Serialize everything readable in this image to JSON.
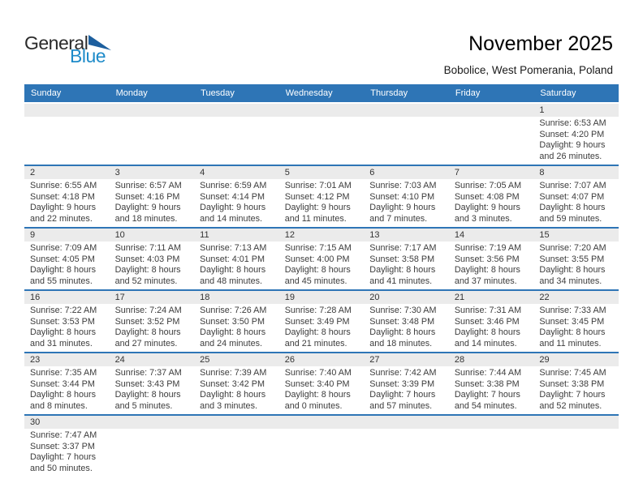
{
  "logo": {
    "general": "General",
    "blue": "Blue"
  },
  "header": {
    "title": "November 2025",
    "subtitle": "Bobolice, West Pomerania, Poland"
  },
  "colors": {
    "header_bg": "#2e75b6",
    "separator": "#2e75b6",
    "day_band_bg": "#ebebeb",
    "header_text": "#ffffff",
    "logo_general": "#2b2b2b",
    "logo_blue": "#1e8bc9",
    "logo_triangle": "#1d5f9e"
  },
  "calendar": {
    "day_headers": [
      "Sunday",
      "Monday",
      "Tuesday",
      "Wednesday",
      "Thursday",
      "Friday",
      "Saturday"
    ],
    "weeks": [
      {
        "cells": [
          null,
          null,
          null,
          null,
          null,
          null,
          {
            "day": "1",
            "lines": [
              "Sunrise: 6:53 AM",
              "Sunset: 4:20 PM",
              "Daylight: 9 hours",
              "and 26 minutes."
            ]
          }
        ]
      },
      {
        "cells": [
          {
            "day": "2",
            "lines": [
              "Sunrise: 6:55 AM",
              "Sunset: 4:18 PM",
              "Daylight: 9 hours",
              "and 22 minutes."
            ]
          },
          {
            "day": "3",
            "lines": [
              "Sunrise: 6:57 AM",
              "Sunset: 4:16 PM",
              "Daylight: 9 hours",
              "and 18 minutes."
            ]
          },
          {
            "day": "4",
            "lines": [
              "Sunrise: 6:59 AM",
              "Sunset: 4:14 PM",
              "Daylight: 9 hours",
              "and 14 minutes."
            ]
          },
          {
            "day": "5",
            "lines": [
              "Sunrise: 7:01 AM",
              "Sunset: 4:12 PM",
              "Daylight: 9 hours",
              "and 11 minutes."
            ]
          },
          {
            "day": "6",
            "lines": [
              "Sunrise: 7:03 AM",
              "Sunset: 4:10 PM",
              "Daylight: 9 hours",
              "and 7 minutes."
            ]
          },
          {
            "day": "7",
            "lines": [
              "Sunrise: 7:05 AM",
              "Sunset: 4:08 PM",
              "Daylight: 9 hours",
              "and 3 minutes."
            ]
          },
          {
            "day": "8",
            "lines": [
              "Sunrise: 7:07 AM",
              "Sunset: 4:07 PM",
              "Daylight: 8 hours",
              "and 59 minutes."
            ]
          }
        ]
      },
      {
        "cells": [
          {
            "day": "9",
            "lines": [
              "Sunrise: 7:09 AM",
              "Sunset: 4:05 PM",
              "Daylight: 8 hours",
              "and 55 minutes."
            ]
          },
          {
            "day": "10",
            "lines": [
              "Sunrise: 7:11 AM",
              "Sunset: 4:03 PM",
              "Daylight: 8 hours",
              "and 52 minutes."
            ]
          },
          {
            "day": "11",
            "lines": [
              "Sunrise: 7:13 AM",
              "Sunset: 4:01 PM",
              "Daylight: 8 hours",
              "and 48 minutes."
            ]
          },
          {
            "day": "12",
            "lines": [
              "Sunrise: 7:15 AM",
              "Sunset: 4:00 PM",
              "Daylight: 8 hours",
              "and 45 minutes."
            ]
          },
          {
            "day": "13",
            "lines": [
              "Sunrise: 7:17 AM",
              "Sunset: 3:58 PM",
              "Daylight: 8 hours",
              "and 41 minutes."
            ]
          },
          {
            "day": "14",
            "lines": [
              "Sunrise: 7:19 AM",
              "Sunset: 3:56 PM",
              "Daylight: 8 hours",
              "and 37 minutes."
            ]
          },
          {
            "day": "15",
            "lines": [
              "Sunrise: 7:20 AM",
              "Sunset: 3:55 PM",
              "Daylight: 8 hours",
              "and 34 minutes."
            ]
          }
        ]
      },
      {
        "cells": [
          {
            "day": "16",
            "lines": [
              "Sunrise: 7:22 AM",
              "Sunset: 3:53 PM",
              "Daylight: 8 hours",
              "and 31 minutes."
            ]
          },
          {
            "day": "17",
            "lines": [
              "Sunrise: 7:24 AM",
              "Sunset: 3:52 PM",
              "Daylight: 8 hours",
              "and 27 minutes."
            ]
          },
          {
            "day": "18",
            "lines": [
              "Sunrise: 7:26 AM",
              "Sunset: 3:50 PM",
              "Daylight: 8 hours",
              "and 24 minutes."
            ]
          },
          {
            "day": "19",
            "lines": [
              "Sunrise: 7:28 AM",
              "Sunset: 3:49 PM",
              "Daylight: 8 hours",
              "and 21 minutes."
            ]
          },
          {
            "day": "20",
            "lines": [
              "Sunrise: 7:30 AM",
              "Sunset: 3:48 PM",
              "Daylight: 8 hours",
              "and 18 minutes."
            ]
          },
          {
            "day": "21",
            "lines": [
              "Sunrise: 7:31 AM",
              "Sunset: 3:46 PM",
              "Daylight: 8 hours",
              "and 14 minutes."
            ]
          },
          {
            "day": "22",
            "lines": [
              "Sunrise: 7:33 AM",
              "Sunset: 3:45 PM",
              "Daylight: 8 hours",
              "and 11 minutes."
            ]
          }
        ]
      },
      {
        "cells": [
          {
            "day": "23",
            "lines": [
              "Sunrise: 7:35 AM",
              "Sunset: 3:44 PM",
              "Daylight: 8 hours",
              "and 8 minutes."
            ]
          },
          {
            "day": "24",
            "lines": [
              "Sunrise: 7:37 AM",
              "Sunset: 3:43 PM",
              "Daylight: 8 hours",
              "and 5 minutes."
            ]
          },
          {
            "day": "25",
            "lines": [
              "Sunrise: 7:39 AM",
              "Sunset: 3:42 PM",
              "Daylight: 8 hours",
              "and 3 minutes."
            ]
          },
          {
            "day": "26",
            "lines": [
              "Sunrise: 7:40 AM",
              "Sunset: 3:40 PM",
              "Daylight: 8 hours",
              "and 0 minutes."
            ]
          },
          {
            "day": "27",
            "lines": [
              "Sunrise: 7:42 AM",
              "Sunset: 3:39 PM",
              "Daylight: 7 hours",
              "and 57 minutes."
            ]
          },
          {
            "day": "28",
            "lines": [
              "Sunrise: 7:44 AM",
              "Sunset: 3:38 PM",
              "Daylight: 7 hours",
              "and 54 minutes."
            ]
          },
          {
            "day": "29",
            "lines": [
              "Sunrise: 7:45 AM",
              "Sunset: 3:38 PM",
              "Daylight: 7 hours",
              "and 52 minutes."
            ]
          }
        ]
      },
      {
        "cells": [
          {
            "day": "30",
            "lines": [
              "Sunrise: 7:47 AM",
              "Sunset: 3:37 PM",
              "Daylight: 7 hours",
              "and 50 minutes."
            ]
          },
          null,
          null,
          null,
          null,
          null,
          null
        ]
      }
    ]
  }
}
